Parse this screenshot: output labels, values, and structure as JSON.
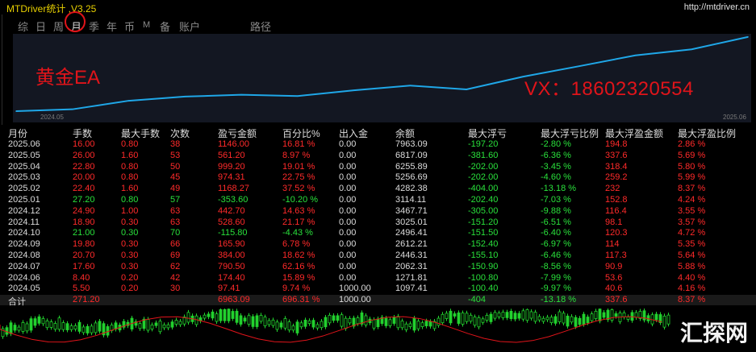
{
  "app": {
    "title": "MTDriver统计 ,V3.25",
    "url": "http://mtdriver.cn"
  },
  "tabs": [
    "综",
    "日",
    "周",
    "月",
    "季",
    "年",
    "币",
    "M",
    "备",
    "账户",
    "路径"
  ],
  "active_tab": "月",
  "overlay": {
    "ea_text": "黄金EA",
    "vx_text": "VX：18602320554"
  },
  "chart_data": {
    "type": "line",
    "x": [
      "2024.05",
      "2024.06",
      "2024.07",
      "2024.08",
      "2024.09",
      "2024.10",
      "2024.11",
      "2024.12",
      "2025.01",
      "2025.02",
      "2025.03",
      "2025.04",
      "2025.05",
      "2025.06"
    ],
    "values": [
      1097.41,
      1271.81,
      2062.31,
      2446.31,
      2612.21,
      2496.41,
      3025.01,
      3467.71,
      3114.11,
      4282.38,
      5256.69,
      6255.89,
      6817.09,
      7963.09
    ],
    "x_tick_labels": [
      "2024.05",
      "2025.06"
    ],
    "color": "#1fa7e8"
  },
  "table": {
    "columns": [
      "月份",
      "手数",
      "最大手数",
      "次数",
      "盈亏金额",
      "百分比%",
      "出入金",
      "余额",
      "最大浮亏",
      "最大浮亏比例",
      "最大浮盈金额",
      "最大浮盈比例"
    ],
    "rows": [
      [
        "2025.06",
        "16.00",
        "0.80",
        "38",
        "1146.00",
        "16.81 %",
        "0.00",
        "7963.09",
        "-197.20",
        "-2.80 %",
        "194.8",
        "2.86 %"
      ],
      [
        "2025.05",
        "26.00",
        "1.60",
        "53",
        "561.20",
        "8.97 %",
        "0.00",
        "6817.09",
        "-381.60",
        "-6.36 %",
        "337.6",
        "5.69 %"
      ],
      [
        "2025.04",
        "22.80",
        "0.80",
        "50",
        "999.20",
        "19.01 %",
        "0.00",
        "6255.89",
        "-202.00",
        "-3.45 %",
        "318.4",
        "5.80 %"
      ],
      [
        "2025.03",
        "20.00",
        "0.80",
        "45",
        "974.31",
        "22.75 %",
        "0.00",
        "5256.69",
        "-202.00",
        "-4.60 %",
        "259.2",
        "5.99 %"
      ],
      [
        "2025.02",
        "22.40",
        "1.60",
        "49",
        "1168.27",
        "37.52 %",
        "0.00",
        "4282.38",
        "-404.00",
        "-13.18 %",
        "232",
        "8.37 %"
      ],
      [
        "2025.01",
        "27.20",
        "0.80",
        "57",
        "-353.60",
        "-10.20 %",
        "0.00",
        "3114.11",
        "-202.40",
        "-7.03 %",
        "152.8",
        "4.24 %"
      ],
      [
        "2024.12",
        "24.90",
        "1.00",
        "63",
        "442.70",
        "14.63 %",
        "0.00",
        "3467.71",
        "-305.00",
        "-9.88 %",
        "116.4",
        "3.55 %"
      ],
      [
        "2024.11",
        "18.90",
        "0.30",
        "63",
        "528.60",
        "21.17 %",
        "0.00",
        "3025.01",
        "-151.20",
        "-6.51 %",
        "98.1",
        "3.57 %"
      ],
      [
        "2024.10",
        "21.00",
        "0.30",
        "70",
        "-115.80",
        "-4.43 %",
        "0.00",
        "2496.41",
        "-151.50",
        "-6.40 %",
        "120.3",
        "4.72 %"
      ],
      [
        "2024.09",
        "19.80",
        "0.30",
        "66",
        "165.90",
        "6.78 %",
        "0.00",
        "2612.21",
        "-152.40",
        "-6.97 %",
        "114",
        "5.35 %"
      ],
      [
        "2024.08",
        "20.70",
        "0.30",
        "69",
        "384.00",
        "18.62 %",
        "0.00",
        "2446.31",
        "-155.10",
        "-6.46 %",
        "117.3",
        "5.64 %"
      ],
      [
        "2024.07",
        "17.60",
        "0.30",
        "62",
        "790.50",
        "62.16 %",
        "0.00",
        "2062.31",
        "-150.90",
        "-8.56 %",
        "90.9",
        "5.88 %"
      ],
      [
        "2024.06",
        "8.40",
        "0.20",
        "42",
        "174.40",
        "15.89 %",
        "0.00",
        "1271.81",
        "-100.80",
        "-7.99 %",
        "53.6",
        "4.40 %"
      ],
      [
        "2024.05",
        "5.50",
        "0.20",
        "30",
        "97.41",
        "9.74 %",
        "1000.00",
        "1097.41",
        "-100.40",
        "-9.97 %",
        "40.6",
        "4.16 %"
      ]
    ],
    "total": [
      "合计",
      "271.20",
      "",
      "",
      "6963.09",
      "696.31 %",
      "1000.00",
      "",
      "-404",
      "-13.18 %",
      "337.6",
      "8.37 %"
    ]
  },
  "watermark": "汇探网",
  "colors": {
    "profit": "#ff2a2a",
    "loss": "#29e03b",
    "neutral": "#dcdcdc",
    "line": "#1fa7e8",
    "accent": "#e0141a"
  }
}
